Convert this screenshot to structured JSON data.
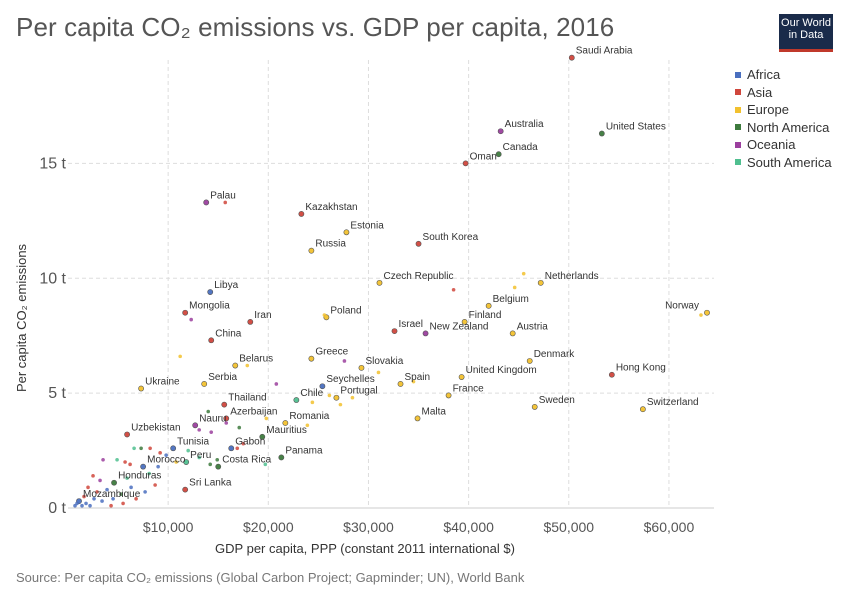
{
  "title": "Per capita CO₂ emissions vs. GDP per capita, 2016",
  "logo": {
    "line1": "Our World",
    "line2": "in Data"
  },
  "source": "Source: Per capita CO₂ emissions (Global Carbon Project; Gapminder; UN), World Bank",
  "colors": {
    "Africa": "#4a6fbf",
    "Asia": "#d0463c",
    "Europe": "#f2c12e",
    "North America": "#3d7a3d",
    "Oceania": "#9b3f9e",
    "South America": "#4fbf8f"
  },
  "legend": [
    "Africa",
    "Asia",
    "Europe",
    "North America",
    "Oceania",
    "South America"
  ],
  "chart_data": {
    "type": "scatter",
    "title": "Per capita CO₂ emissions vs. GDP per capita, 2016",
    "xlabel": "GDP per capita, PPP (constant 2011 international $)",
    "ylabel": "Per capita CO₂ emissions",
    "xlim": [
      0,
      64500
    ],
    "ylim": [
      0,
      19.5
    ],
    "x_ticks": [
      {
        "value": 10000,
        "label": "$10,000"
      },
      {
        "value": 20000,
        "label": "$20,000"
      },
      {
        "value": 30000,
        "label": "$30,000"
      },
      {
        "value": 40000,
        "label": "$40,000"
      },
      {
        "value": 50000,
        "label": "$50,000"
      },
      {
        "value": 60000,
        "label": "$60,000"
      }
    ],
    "y_ticks": [
      {
        "value": 0,
        "label": "0 t"
      },
      {
        "value": 5,
        "label": "5 t"
      },
      {
        "value": 10,
        "label": "10 t"
      },
      {
        "value": 15,
        "label": "15 t"
      }
    ],
    "grid": true,
    "legend_position": "right",
    "points": [
      {
        "x": 50300,
        "y": 19.6,
        "region": "Asia",
        "label": "Saudi Arabia"
      },
      {
        "x": 43200,
        "y": 16.4,
        "region": "Oceania",
        "label": "Australia"
      },
      {
        "x": 53300,
        "y": 16.3,
        "region": "North America",
        "label": "United States"
      },
      {
        "x": 43000,
        "y": 15.4,
        "region": "North America",
        "label": "Canada"
      },
      {
        "x": 39700,
        "y": 15.0,
        "region": "Asia",
        "label": "Oman"
      },
      {
        "x": 13800,
        "y": 13.3,
        "region": "Oceania",
        "label": "Palau"
      },
      {
        "x": 23300,
        "y": 12.8,
        "region": "Asia",
        "label": "Kazakhstan"
      },
      {
        "x": 27800,
        "y": 12.0,
        "region": "Europe",
        "label": "Estonia"
      },
      {
        "x": 35000,
        "y": 11.5,
        "region": "Asia",
        "label": "South Korea"
      },
      {
        "x": 24300,
        "y": 11.2,
        "region": "Europe",
        "label": "Russia"
      },
      {
        "x": 31100,
        "y": 9.8,
        "region": "Europe",
        "label": "Czech Republic"
      },
      {
        "x": 47200,
        "y": 9.8,
        "region": "Europe",
        "label": "Netherlands"
      },
      {
        "x": 14200,
        "y": 9.4,
        "region": "Africa",
        "label": "Libya"
      },
      {
        "x": 42000,
        "y": 8.8,
        "region": "Europe",
        "label": "Belgium"
      },
      {
        "x": 63800,
        "y": 8.5,
        "region": "Europe",
        "label": "Norway"
      },
      {
        "x": 11700,
        "y": 8.5,
        "region": "Asia",
        "label": "Mongolia"
      },
      {
        "x": 25800,
        "y": 8.3,
        "region": "Europe",
        "label": "Poland"
      },
      {
        "x": 18200,
        "y": 8.1,
        "region": "Asia",
        "label": "Iran"
      },
      {
        "x": 39600,
        "y": 8.1,
        "region": "Europe",
        "label": "Finland"
      },
      {
        "x": 32600,
        "y": 7.7,
        "region": "Asia",
        "label": "Israel"
      },
      {
        "x": 44400,
        "y": 7.6,
        "region": "Europe",
        "label": "Austria"
      },
      {
        "x": 35700,
        "y": 7.6,
        "region": "Oceania",
        "label": "New Zealand"
      },
      {
        "x": 14300,
        "y": 7.3,
        "region": "Asia",
        "label": "China"
      },
      {
        "x": 24300,
        "y": 6.5,
        "region": "Europe",
        "label": "Greece"
      },
      {
        "x": 46100,
        "y": 6.4,
        "region": "Europe",
        "label": "Denmark"
      },
      {
        "x": 16700,
        "y": 6.2,
        "region": "Europe",
        "label": "Belarus"
      },
      {
        "x": 29300,
        "y": 6.1,
        "region": "Europe",
        "label": "Slovakia"
      },
      {
        "x": 54300,
        "y": 5.8,
        "region": "Asia",
        "label": "Hong Kong"
      },
      {
        "x": 39300,
        "y": 5.7,
        "region": "Europe",
        "label": "United Kingdom"
      },
      {
        "x": 13600,
        "y": 5.4,
        "region": "Europe",
        "label": "Serbia"
      },
      {
        "x": 25400,
        "y": 5.3,
        "region": "Africa",
        "label": "Seychelles"
      },
      {
        "x": 7300,
        "y": 5.2,
        "region": "Europe",
        "label": "Ukraine"
      },
      {
        "x": 33200,
        "y": 5.4,
        "region": "Europe",
        "label": "Spain"
      },
      {
        "x": 38000,
        "y": 4.9,
        "region": "Europe",
        "label": "France"
      },
      {
        "x": 26800,
        "y": 4.8,
        "region": "Europe",
        "label": "Portugal"
      },
      {
        "x": 22800,
        "y": 4.7,
        "region": "South America",
        "label": "Chile"
      },
      {
        "x": 46600,
        "y": 4.4,
        "region": "Europe",
        "label": "Sweden"
      },
      {
        "x": 57400,
        "y": 4.3,
        "region": "Europe",
        "label": "Switzerland"
      },
      {
        "x": 15600,
        "y": 4.5,
        "region": "Asia",
        "label": "Thailand"
      },
      {
        "x": 34900,
        "y": 3.9,
        "region": "Europe",
        "label": "Malta"
      },
      {
        "x": 15800,
        "y": 3.9,
        "region": "Asia",
        "label": "Azerbaijan"
      },
      {
        "x": 21700,
        "y": 3.7,
        "region": "Europe",
        "label": "Romania"
      },
      {
        "x": 12700,
        "y": 3.6,
        "region": "Oceania",
        "label": "Nauru"
      },
      {
        "x": 5900,
        "y": 3.2,
        "region": "Asia",
        "label": "Uzbekistan"
      },
      {
        "x": 19400,
        "y": 3.1,
        "region": "North America",
        "label": "Mauritius"
      },
      {
        "x": 16300,
        "y": 2.6,
        "region": "Africa",
        "label": "Gabon"
      },
      {
        "x": 10500,
        "y": 2.6,
        "region": "Africa",
        "label": "Tunisia"
      },
      {
        "x": 21300,
        "y": 2.2,
        "region": "North America",
        "label": "Panama"
      },
      {
        "x": 11800,
        "y": 2.0,
        "region": "South America",
        "label": "Peru"
      },
      {
        "x": 15000,
        "y": 1.8,
        "region": "North America",
        "label": "Costa Rica"
      },
      {
        "x": 7500,
        "y": 1.8,
        "region": "Africa",
        "label": "Morocco"
      },
      {
        "x": 4600,
        "y": 1.1,
        "region": "North America",
        "label": "Honduras"
      },
      {
        "x": 11700,
        "y": 0.8,
        "region": "Asia",
        "label": "Sri Lanka"
      },
      {
        "x": 1100,
        "y": 0.3,
        "region": "Africa",
        "label": "Mozambique"
      },
      {
        "x": 15700,
        "y": 13.3,
        "region": "Asia"
      },
      {
        "x": 38500,
        "y": 9.5,
        "region": "Asia"
      },
      {
        "x": 45500,
        "y": 10.2,
        "region": "Europe"
      },
      {
        "x": 44600,
        "y": 9.6,
        "region": "Europe"
      },
      {
        "x": 63200,
        "y": 8.4,
        "region": "Europe"
      },
      {
        "x": 12300,
        "y": 8.2,
        "region": "Oceania"
      },
      {
        "x": 25600,
        "y": 8.4,
        "region": "Europe"
      },
      {
        "x": 11200,
        "y": 6.6,
        "region": "Europe"
      },
      {
        "x": 27600,
        "y": 6.4,
        "region": "Oceania"
      },
      {
        "x": 31000,
        "y": 5.9,
        "region": "Europe"
      },
      {
        "x": 17900,
        "y": 6.2,
        "region": "Europe"
      },
      {
        "x": 20800,
        "y": 5.4,
        "region": "Oceania"
      },
      {
        "x": 34500,
        "y": 5.5,
        "region": "Europe"
      },
      {
        "x": 27200,
        "y": 4.5,
        "region": "Europe"
      },
      {
        "x": 26100,
        "y": 4.9,
        "region": "Europe"
      },
      {
        "x": 24400,
        "y": 4.6,
        "region": "Europe"
      },
      {
        "x": 28400,
        "y": 4.8,
        "region": "Europe"
      },
      {
        "x": 23900,
        "y": 3.6,
        "region": "Europe"
      },
      {
        "x": 19800,
        "y": 3.9,
        "region": "Europe"
      },
      {
        "x": 14000,
        "y": 4.2,
        "region": "North America"
      },
      {
        "x": 13100,
        "y": 3.4,
        "region": "Oceania"
      },
      {
        "x": 14300,
        "y": 3.3,
        "region": "Oceania"
      },
      {
        "x": 15800,
        "y": 3.7,
        "region": "Oceania"
      },
      {
        "x": 17100,
        "y": 3.5,
        "region": "North America"
      },
      {
        "x": 16900,
        "y": 2.6,
        "region": "Asia"
      },
      {
        "x": 17500,
        "y": 2.8,
        "region": "Asia"
      },
      {
        "x": 19700,
        "y": 1.9,
        "region": "South America"
      },
      {
        "x": 12000,
        "y": 2.5,
        "region": "South America"
      },
      {
        "x": 13100,
        "y": 2.2,
        "region": "South America"
      },
      {
        "x": 14200,
        "y": 1.9,
        "region": "North America"
      },
      {
        "x": 14900,
        "y": 2.1,
        "region": "North America"
      },
      {
        "x": 10800,
        "y": 2.0,
        "region": "Europe"
      },
      {
        "x": 9800,
        "y": 2.3,
        "region": "Africa"
      },
      {
        "x": 9200,
        "y": 2.4,
        "region": "Asia"
      },
      {
        "x": 8200,
        "y": 2.6,
        "region": "Asia"
      },
      {
        "x": 7300,
        "y": 2.6,
        "region": "North America"
      },
      {
        "x": 6600,
        "y": 2.6,
        "region": "South America"
      },
      {
        "x": 9000,
        "y": 1.8,
        "region": "Africa"
      },
      {
        "x": 8100,
        "y": 1.5,
        "region": "South America"
      },
      {
        "x": 6200,
        "y": 1.9,
        "region": "Asia"
      },
      {
        "x": 5700,
        "y": 2.0,
        "region": "Asia"
      },
      {
        "x": 4900,
        "y": 2.1,
        "region": "South America"
      },
      {
        "x": 3500,
        "y": 2.1,
        "region": "Oceania"
      },
      {
        "x": 2500,
        "y": 1.4,
        "region": "Asia"
      },
      {
        "x": 3200,
        "y": 1.2,
        "region": "Oceania"
      },
      {
        "x": 5900,
        "y": 1.3,
        "region": "South America"
      },
      {
        "x": 8700,
        "y": 1.0,
        "region": "Asia"
      },
      {
        "x": 6300,
        "y": 0.9,
        "region": "Africa"
      },
      {
        "x": 7700,
        "y": 0.7,
        "region": "Africa"
      },
      {
        "x": 5300,
        "y": 0.6,
        "region": "North America"
      },
      {
        "x": 3900,
        "y": 0.8,
        "region": "Africa"
      },
      {
        "x": 2900,
        "y": 0.7,
        "region": "Asia"
      },
      {
        "x": 2000,
        "y": 0.9,
        "region": "Asia"
      },
      {
        "x": 4500,
        "y": 0.4,
        "region": "Africa"
      },
      {
        "x": 3400,
        "y": 0.3,
        "region": "Africa"
      },
      {
        "x": 2600,
        "y": 0.4,
        "region": "Africa"
      },
      {
        "x": 1800,
        "y": 0.2,
        "region": "Africa"
      },
      {
        "x": 1400,
        "y": 0.1,
        "region": "Africa"
      },
      {
        "x": 900,
        "y": 0.2,
        "region": "Africa"
      },
      {
        "x": 700,
        "y": 0.1,
        "region": "Africa"
      },
      {
        "x": 2200,
        "y": 0.1,
        "region": "Africa"
      },
      {
        "x": 1600,
        "y": 0.5,
        "region": "Asia"
      },
      {
        "x": 4300,
        "y": 0.1,
        "region": "Asia"
      },
      {
        "x": 5500,
        "y": 0.2,
        "region": "Asia"
      },
      {
        "x": 6800,
        "y": 0.4,
        "region": "Asia"
      }
    ]
  }
}
